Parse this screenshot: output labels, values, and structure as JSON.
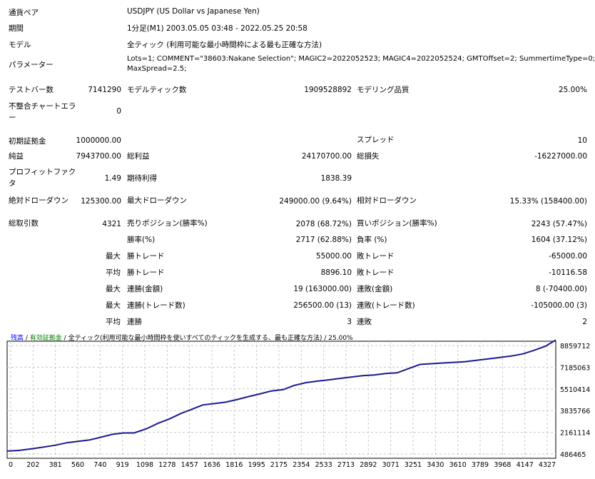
{
  "info": {
    "symbol_label": "通貨ペア",
    "symbol_value": "USDJPY (US Dollar vs Japanese Yen)",
    "period_label": "期間",
    "period_value": "1分足(M1) 2003.05.05 03:48 - 2022.05.25 20:58",
    "model_label": "モデル",
    "model_value": "全ティック (利用可能な最小時間枠による最も正確な方法)",
    "params_label": "パラメーター",
    "params_line1": "Lots=1; COMMENT=\"38603:Nakane Selection\"; MAGIC2=2022052523; MAGIC4=2022052524; GMTOffset=2; SummertimeType=0;",
    "params_line2": "MaxSpread=2.5;"
  },
  "stats": {
    "bars_label": "テストバー数",
    "bars_value": "7141290",
    "ticks_label": "モデルティック数",
    "ticks_value": "1909528892",
    "quality_label": "モデリング品質",
    "quality_value": "25.00%",
    "mismatch_label_1": "不整合チャートエラ",
    "mismatch_label_2": "ー",
    "mismatch_value": "0",
    "deposit_label": "初期証拠金",
    "deposit_value": "1000000.00",
    "spread_label": "スプレッド",
    "spread_value": "10",
    "net_label": "純益",
    "net_value": "7943700.00",
    "gross_profit_label": "総利益",
    "gross_profit_value": "24170700.00",
    "gross_loss_label": "総損失",
    "gross_loss_value": "-16227000.00",
    "pf_label_1": "プロフィットファク",
    "pf_label_2": "タ",
    "pf_value": "1.49",
    "payoff_label": "期待利得",
    "payoff_value": "1838.39",
    "abs_dd_label": "絶対ドローダウン",
    "abs_dd_value": "125300.00",
    "max_dd_label": "最大ドローダウン",
    "max_dd_value": "249000.00 (9.64%)",
    "rel_dd_label": "相対ドローダウン",
    "rel_dd_value": "15.33% (158400.00)",
    "trades_label": "総取引数",
    "trades_value": "4321",
    "short_label": "売りポジション(勝率%)",
    "short_value": "2078 (68.72%)",
    "long_label": "買いポジション(勝率%)",
    "long_value": "2243 (57.47%)",
    "win_label": "勝率(%)",
    "win_value": "2717 (62.88%)",
    "loss_label": "負率 (%)",
    "loss_value": "1604 (37.12%)",
    "max1": "最大",
    "largest_win_label": "勝トレード",
    "largest_win_value": "55000.00",
    "largest_loss_label": "敗トレード",
    "largest_loss_value": "-65000.00",
    "avg": "平均",
    "avg_win_label": "勝トレード",
    "avg_win_value": "8896.10",
    "avg_loss_label": "敗トレード",
    "avg_loss_value": "-10116.58",
    "max2": "最大",
    "max_cons_wins_label": "連勝(金額)",
    "max_cons_wins_value": "19 (163000.00)",
    "max_cons_losses_label": "連敗(金額)",
    "max_cons_losses_value": "8 (-70400.00)",
    "max3": "最大",
    "max_cons_profit_label": "連勝(トレード数)",
    "max_cons_profit_value": "256500.00 (13)",
    "max_cons_loss_label": "連敗(トレード数)",
    "max_cons_loss_value": "-105000.00 (3)",
    "avg2": "平均",
    "avg_cons_wins_label": "連勝",
    "avg_cons_wins_value": "3",
    "avg_cons_losses_label": "連敗",
    "avg_cons_losses_value": "2"
  },
  "chart_header": {
    "balance": "残高",
    "sep1": " / ",
    "equity": "有効証拠金",
    "sep2": " / ",
    "desc": "全ティック(利用可能な最小時間枠を使いすべてのティックを生成する、最も正確な方法)",
    "sep3": " / ",
    "quality": "25.00%"
  },
  "colors": {
    "balance": "#0000ff",
    "equity": "#008000",
    "line": "#1a1a8c",
    "grid": "#c8c8c8"
  },
  "chart_data": {
    "type": "line",
    "x_ticks": [
      "0",
      "202",
      "381",
      "560",
      "740",
      "919",
      "1098",
      "1278",
      "1457",
      "1636",
      "1816",
      "1995",
      "2175",
      "2354",
      "2533",
      "2713",
      "2892",
      "3071",
      "3251",
      "3430",
      "3610",
      "3789",
      "3968",
      "4147",
      "4327"
    ],
    "y_ticks": [
      "8859712",
      "7185063",
      "5510414",
      "3835766",
      "2161114",
      "486465"
    ],
    "xlim": [
      0,
      4321
    ],
    "ylim": [
      486465,
      8859712
    ],
    "series": [
      {
        "x": [
          0,
          90,
          180,
          260,
          380,
          470,
          560,
          650,
          740,
          830,
          919,
          1000,
          1098,
          1190,
          1278,
          1370,
          1457,
          1540,
          1636,
          1720,
          1816,
          1900,
          1995,
          2080,
          2175,
          2260,
          2354,
          2440,
          2533,
          2620,
          2713,
          2800,
          2892,
          2980,
          3071,
          3160,
          3251,
          3340,
          3430,
          3520,
          3610,
          3700,
          3789,
          3880,
          3968,
          4060,
          4147,
          4240,
          4321
        ],
        "y": [
          1000000,
          1050000,
          1150000,
          1250000,
          1420000,
          1600000,
          1700000,
          1800000,
          2000000,
          2200000,
          2300000,
          2300000,
          2600000,
          3000000,
          3300000,
          3700000,
          4000000,
          4300000,
          4400000,
          4500000,
          4700000,
          4900000,
          5100000,
          5300000,
          5400000,
          5700000,
          5900000,
          6000000,
          6100000,
          6200000,
          6300000,
          6400000,
          6450000,
          6550000,
          6600000,
          6900000,
          7200000,
          7250000,
          7300000,
          7350000,
          7400000,
          7500000,
          7600000,
          7700000,
          7800000,
          7950000,
          8200000,
          8500000,
          8943700
        ]
      }
    ]
  }
}
